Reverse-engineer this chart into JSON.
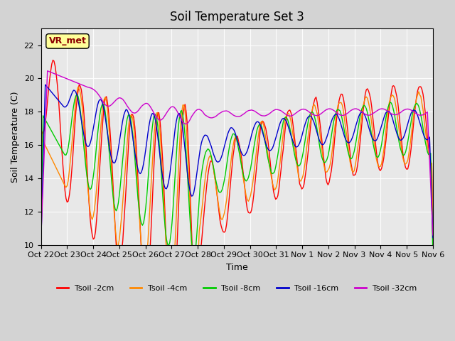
{
  "title": "Soil Temperature Set 3",
  "xlabel": "Time",
  "ylabel": "Soil Temperature (C)",
  "ylim": [
    10,
    23
  ],
  "yticks": [
    10,
    12,
    14,
    16,
    18,
    20,
    22
  ],
  "colors": {
    "Tsoil -2cm": "#ff0000",
    "Tsoil -4cm": "#ff8800",
    "Tsoil -8cm": "#00cc00",
    "Tsoil -16cm": "#0000cc",
    "Tsoil -32cm": "#cc00cc"
  },
  "annotation_text": "VR_met",
  "annotation_color": "#8b0000",
  "annotation_bg": "#ffff99",
  "bg_color": "#d3d3d3",
  "plot_bg": "#e8e8e8",
  "tick_labels": [
    "Oct 22",
    "Oct 23",
    "Oct 24",
    "Oct 25",
    "Oct 26",
    "Oct 27",
    "Oct 28",
    "Oct 29",
    "Oct 30",
    "Oct 31",
    "Nov 1",
    "Nov 2",
    "Nov 3",
    "Nov 4",
    "Nov 5",
    "Nov 6"
  ],
  "n_days": 15
}
